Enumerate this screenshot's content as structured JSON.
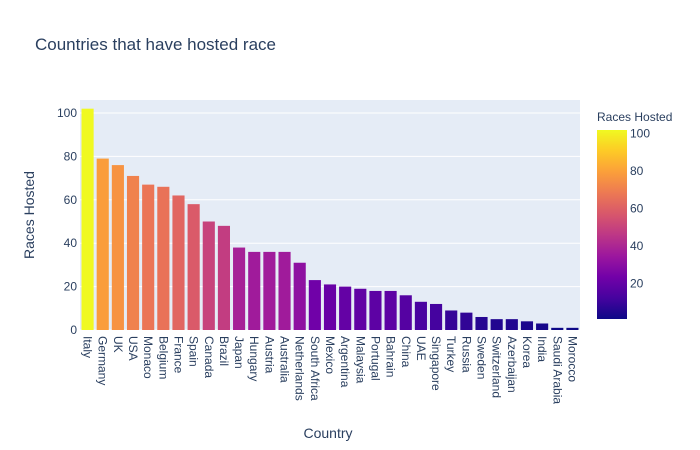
{
  "chart_data": {
    "type": "bar",
    "title": "Countries that have hosted race",
    "xlabel": "Country",
    "ylabel": "Races Hosted",
    "ylim": [
      0,
      106
    ],
    "yticks": [
      0,
      20,
      40,
      60,
      80,
      100
    ],
    "grid": true,
    "categories": [
      "Italy",
      "Germany",
      "UK",
      "USA",
      "Monaco",
      "Belgium",
      "France",
      "Spain",
      "Canada",
      "Brazil",
      "Japan",
      "Hungary",
      "Austria",
      "Australia",
      "Netherlands",
      "South Africa",
      "Mexico",
      "Argentina",
      "Malaysia",
      "Portugal",
      "Bahrain",
      "China",
      "UAE",
      "Singapore",
      "Turkey",
      "Russia",
      "Sweden",
      "Switzerland",
      "Azerbaijan",
      "Korea",
      "India",
      "Saudi Arabia",
      "Morocco"
    ],
    "values": [
      102,
      79,
      76,
      71,
      67,
      66,
      62,
      58,
      50,
      48,
      38,
      36,
      36,
      36,
      31,
      23,
      21,
      20,
      19,
      18,
      18,
      16,
      13,
      12,
      9,
      8,
      6,
      5,
      5,
      4,
      3,
      1,
      1
    ],
    "colorbar": {
      "title": "Races Hosted",
      "range": [
        1,
        102
      ],
      "ticks": [
        20,
        40,
        60,
        80,
        100
      ],
      "colorscale": [
        "#0d0887",
        "#46039f",
        "#7201a8",
        "#9c179e",
        "#bd3786",
        "#d8576b",
        "#ed7953",
        "#fb9f3a",
        "#fdca26",
        "#f0f921"
      ]
    }
  }
}
